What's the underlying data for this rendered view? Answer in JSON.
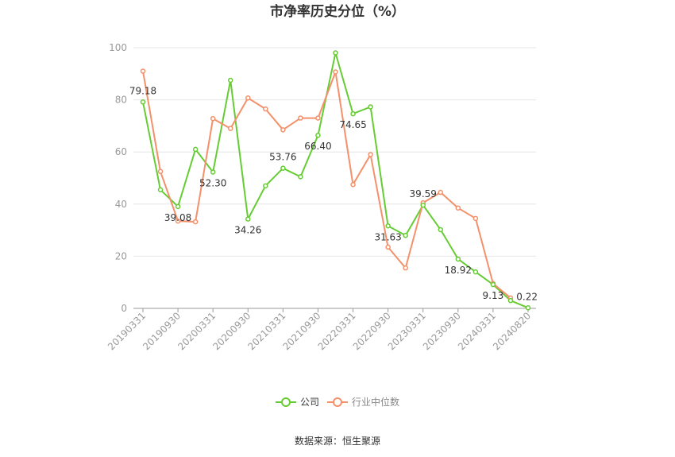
{
  "chart_data": {
    "type": "line",
    "title": "市净率历史分位（%）",
    "xlabel": "",
    "ylabel": "",
    "ylim": [
      0,
      100
    ],
    "y_ticks": [
      "0",
      "20",
      "40",
      "60",
      "80",
      "100"
    ],
    "x_tick_labels": [
      "20190331",
      "20190930",
      "20200331",
      "20200930",
      "20210331",
      "20210930",
      "20220331",
      "20220930",
      "20230331",
      "20230930",
      "20240331",
      "20240820"
    ],
    "x": [
      "20190331",
      "20190630",
      "20190930",
      "20191231",
      "20200331",
      "20200630",
      "20200930",
      "20201231",
      "20210331",
      "20210630",
      "20210930",
      "20211231",
      "20220331",
      "20220630",
      "20220930",
      "20221231",
      "20230331",
      "20230630",
      "20230930",
      "20231231",
      "20240331",
      "20240630",
      "20240820"
    ],
    "series": [
      {
        "name": "公司",
        "color": "#66cc33",
        "values": [
          79.18,
          45.5,
          39.08,
          61.0,
          52.3,
          87.5,
          34.26,
          47.0,
          53.76,
          50.5,
          66.4,
          98.0,
          74.65,
          77.3,
          31.63,
          28.0,
          39.59,
          30.2,
          18.92,
          14.0,
          9.13,
          3.0,
          0.22
        ],
        "labels": [
          "79.18",
          "",
          "39.08",
          "",
          "52.30",
          "",
          "34.26",
          "",
          "53.76",
          "",
          "66.40",
          "",
          "74.65",
          "",
          "31.63",
          "",
          "39.59",
          "",
          "18.92",
          "",
          "9.13",
          "",
          "0.22"
        ]
      },
      {
        "name": "行业中位数",
        "color": "#f4906a",
        "values": [
          91.0,
          52.5,
          33.5,
          33.2,
          72.8,
          69.0,
          80.7,
          76.5,
          68.5,
          73.0,
          73.0,
          90.7,
          47.5,
          59.0,
          23.5,
          15.5,
          40.5,
          44.5,
          38.5,
          34.5,
          9.5,
          4.0,
          null
        ]
      }
    ],
    "grid": true,
    "legend_position": "bottom"
  },
  "footer": {
    "source": "数据来源：恒生聚源"
  }
}
